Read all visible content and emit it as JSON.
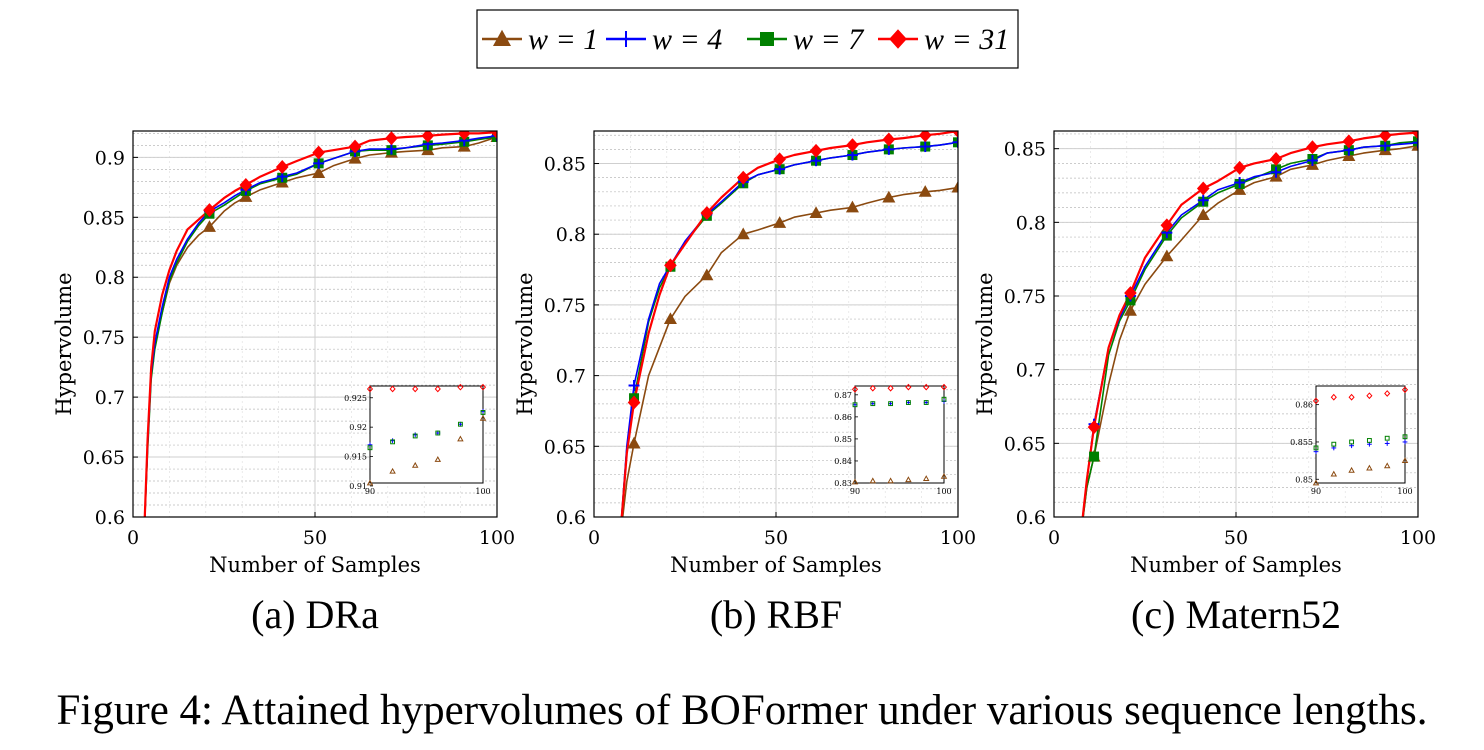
{
  "legend": [
    {
      "label": "w = 1",
      "color": "#8B4A10",
      "marker": "triangle"
    },
    {
      "label": "w = 4",
      "color": "#0000FF",
      "marker": "plus"
    },
    {
      "label": "w = 7",
      "color": "#008000",
      "marker": "square"
    },
    {
      "label": "w = 31",
      "color": "#FF0000",
      "marker": "diamond"
    }
  ],
  "figure_caption": "Figure 4: Attained hypervolumes of BOFormer under various sequence lengths.",
  "chart_data": [
    {
      "type": "line",
      "subcaption": "(a) DRa",
      "xlabel": "Number of Samples",
      "ylabel": "Hypervolume",
      "xlim": [
        0,
        100
      ],
      "ylim": [
        0.6,
        0.922
      ],
      "xticks": [
        0,
        50,
        100
      ],
      "yticks": [
        0.6,
        0.65,
        0.7,
        0.75,
        0.8,
        0.85,
        0.9
      ],
      "ytick_labels": [
        "0.6",
        "0.65",
        "0.7",
        "0.75",
        "0.8",
        "0.85",
        "0.9"
      ],
      "grid": true,
      "series": [
        {
          "name": "w = 1",
          "x": [
            3,
            4,
            5,
            6,
            8,
            10,
            12,
            15,
            18,
            21,
            25,
            28,
            31,
            35,
            41,
            45,
            51,
            55,
            61,
            65,
            71,
            75,
            81,
            85,
            91,
            95,
            100
          ],
          "y": [
            0.58,
            0.66,
            0.72,
            0.745,
            0.77,
            0.795,
            0.81,
            0.825,
            0.835,
            0.842,
            0.855,
            0.862,
            0.867,
            0.873,
            0.879,
            0.883,
            0.887,
            0.893,
            0.899,
            0.902,
            0.904,
            0.905,
            0.906,
            0.908,
            0.909,
            0.912,
            0.917
          ]
        },
        {
          "name": "w = 4",
          "x": [
            3,
            4,
            5,
            6,
            8,
            10,
            12,
            15,
            18,
            21,
            25,
            28,
            31,
            35,
            41,
            45,
            51,
            55,
            61,
            65,
            71,
            75,
            81,
            85,
            91,
            95,
            100
          ],
          "y": [
            0.58,
            0.66,
            0.72,
            0.745,
            0.775,
            0.8,
            0.815,
            0.832,
            0.845,
            0.855,
            0.862,
            0.868,
            0.873,
            0.879,
            0.884,
            0.887,
            0.895,
            0.899,
            0.905,
            0.907,
            0.907,
            0.908,
            0.911,
            0.912,
            0.914,
            0.916,
            0.918
          ]
        },
        {
          "name": "w = 7",
          "x": [
            3,
            4,
            5,
            6,
            8,
            10,
            12,
            15,
            18,
            21,
            25,
            28,
            31,
            35,
            41,
            45,
            51,
            55,
            61,
            65,
            71,
            75,
            81,
            85,
            91,
            95,
            100
          ],
          "y": [
            0.58,
            0.655,
            0.715,
            0.74,
            0.77,
            0.797,
            0.812,
            0.83,
            0.843,
            0.853,
            0.86,
            0.866,
            0.872,
            0.878,
            0.883,
            0.886,
            0.895,
            0.899,
            0.905,
            0.906,
            0.906,
            0.908,
            0.91,
            0.911,
            0.913,
            0.915,
            0.917
          ]
        },
        {
          "name": "w = 31",
          "x": [
            3,
            4,
            5,
            6,
            8,
            10,
            12,
            15,
            18,
            21,
            25,
            28,
            31,
            35,
            41,
            45,
            51,
            55,
            61,
            65,
            71,
            75,
            81,
            85,
            91,
            95,
            100
          ],
          "y": [
            0.58,
            0.665,
            0.725,
            0.755,
            0.785,
            0.806,
            0.822,
            0.84,
            0.848,
            0.856,
            0.866,
            0.872,
            0.877,
            0.884,
            0.892,
            0.897,
            0.904,
            0.906,
            0.909,
            0.914,
            0.916,
            0.917,
            0.918,
            0.919,
            0.92,
            0.92,
            0.921
          ]
        }
      ],
      "inset": {
        "xlim": [
          90,
          100
        ],
        "ylim": [
          0.9105,
          0.927
        ],
        "xticks": [
          90,
          100
        ],
        "yticks": [
          0.91,
          0.915,
          0.92,
          0.925
        ],
        "series": [
          {
            "name": "w = 1",
            "x": [
              90,
              92,
              94,
              96,
              98,
              100
            ],
            "y": [
              0.9105,
              0.9125,
              0.9135,
              0.9145,
              0.918,
              0.9215
            ]
          },
          {
            "name": "w = 4",
            "x": [
              90,
              92,
              94,
              96,
              98,
              100
            ],
            "y": [
              0.917,
              0.9177,
              0.9187,
              0.919,
              0.9205,
              0.9227
            ]
          },
          {
            "name": "w = 7",
            "x": [
              90,
              92,
              94,
              96,
              98,
              100
            ],
            "y": [
              0.9165,
              0.9175,
              0.9185,
              0.919,
              0.9205,
              0.9225
            ]
          },
          {
            "name": "w = 31",
            "x": [
              90,
              92,
              94,
              96,
              98,
              100
            ],
            "y": [
              0.9265,
              0.9265,
              0.9265,
              0.9265,
              0.9268,
              0.9268
            ]
          }
        ]
      }
    },
    {
      "type": "line",
      "subcaption": "(b) RBF",
      "xlabel": "Number of Samples",
      "ylabel": "Hypervolume",
      "xlim": [
        0,
        100
      ],
      "ylim": [
        0.6,
        0.873
      ],
      "xticks": [
        0,
        50,
        100
      ],
      "yticks": [
        0.6,
        0.65,
        0.7,
        0.75,
        0.8,
        0.85
      ],
      "ytick_labels": [
        "0.6",
        "0.65",
        "0.7",
        "0.75",
        "0.8",
        "0.85"
      ],
      "grid": true,
      "series": [
        {
          "name": "w = 1",
          "x": [
            7,
            9,
            11,
            15,
            21,
            25,
            31,
            35,
            41,
            45,
            51,
            55,
            61,
            65,
            71,
            75,
            81,
            85,
            91,
            95,
            100
          ],
          "y": [
            0.58,
            0.625,
            0.652,
            0.7,
            0.74,
            0.756,
            0.771,
            0.787,
            0.8,
            0.803,
            0.808,
            0.812,
            0.815,
            0.817,
            0.819,
            0.822,
            0.826,
            0.828,
            0.83,
            0.831,
            0.833
          ]
        },
        {
          "name": "w = 4",
          "x": [
            7,
            9,
            11,
            15,
            18,
            21,
            25,
            31,
            35,
            41,
            45,
            51,
            55,
            61,
            65,
            71,
            75,
            81,
            85,
            91,
            95,
            100
          ],
          "y": [
            0.58,
            0.65,
            0.693,
            0.74,
            0.765,
            0.778,
            0.795,
            0.814,
            0.823,
            0.837,
            0.842,
            0.846,
            0.849,
            0.852,
            0.854,
            0.856,
            0.858,
            0.86,
            0.861,
            0.862,
            0.863,
            0.865
          ]
        },
        {
          "name": "w = 7",
          "x": [
            7,
            9,
            11,
            15,
            18,
            21,
            25,
            31,
            35,
            41,
            45,
            51,
            55,
            61,
            65,
            71,
            75,
            81,
            85,
            91,
            95,
            100
          ],
          "y": [
            0.58,
            0.648,
            0.684,
            0.738,
            0.762,
            0.777,
            0.794,
            0.813,
            0.822,
            0.836,
            0.842,
            0.846,
            0.849,
            0.852,
            0.854,
            0.856,
            0.858,
            0.86,
            0.861,
            0.862,
            0.863,
            0.865
          ]
        },
        {
          "name": "w = 31",
          "x": [
            7,
            9,
            11,
            15,
            18,
            21,
            25,
            31,
            35,
            41,
            45,
            51,
            55,
            61,
            65,
            71,
            75,
            81,
            85,
            91,
            95,
            100
          ],
          "y": [
            0.58,
            0.645,
            0.681,
            0.73,
            0.757,
            0.778,
            0.793,
            0.815,
            0.826,
            0.84,
            0.847,
            0.853,
            0.856,
            0.859,
            0.861,
            0.863,
            0.865,
            0.867,
            0.868,
            0.87,
            0.871,
            0.873
          ]
        }
      ],
      "inset": {
        "xlim": [
          90,
          100
        ],
        "ylim": [
          0.83,
          0.874
        ],
        "xticks": [
          90,
          100
        ],
        "yticks": [
          0.83,
          0.84,
          0.85,
          0.86,
          0.87
        ],
        "series": [
          {
            "name": "w = 1",
            "x": [
              90,
              92,
              94,
              96,
              98,
              100
            ],
            "y": [
              0.8305,
              0.831,
              0.831,
              0.8315,
              0.832,
              0.833
            ]
          },
          {
            "name": "w = 4",
            "x": [
              90,
              92,
              94,
              96,
              98,
              100
            ],
            "y": [
              0.8655,
              0.866,
              0.866,
              0.8665,
              0.8665,
              0.867
            ]
          },
          {
            "name": "w = 7",
            "x": [
              90,
              92,
              94,
              96,
              98,
              100
            ],
            "y": [
              0.8655,
              0.866,
              0.866,
              0.8665,
              0.8665,
              0.868
            ]
          },
          {
            "name": "w = 31",
            "x": [
              90,
              92,
              94,
              96,
              98,
              100
            ],
            "y": [
              0.8725,
              0.873,
              0.873,
              0.8735,
              0.8735,
              0.8735
            ]
          }
        ]
      }
    },
    {
      "type": "line",
      "subcaption": "(c) Matern52",
      "xlabel": "Number of Samples",
      "ylabel": "Hypervolume",
      "xlim": [
        0,
        100
      ],
      "ylim": [
        0.6,
        0.862
      ],
      "xticks": [
        0,
        50,
        100
      ],
      "yticks": [
        0.6,
        0.65,
        0.7,
        0.75,
        0.8,
        0.85
      ],
      "ytick_labels": [
        "0.6",
        "0.65",
        "0.7",
        "0.75",
        "0.8",
        "0.85"
      ],
      "grid": true,
      "series": [
        {
          "name": "w = 1",
          "x": [
            7,
            9,
            11,
            15,
            18,
            21,
            25,
            31,
            35,
            41,
            45,
            51,
            55,
            61,
            65,
            71,
            75,
            81,
            85,
            91,
            95,
            100
          ],
          "y": [
            0.58,
            0.62,
            0.641,
            0.69,
            0.72,
            0.74,
            0.758,
            0.777,
            0.788,
            0.805,
            0.813,
            0.822,
            0.827,
            0.831,
            0.836,
            0.839,
            0.842,
            0.845,
            0.847,
            0.849,
            0.85,
            0.852
          ]
        },
        {
          "name": "w = 4",
          "x": [
            7,
            9,
            11,
            15,
            18,
            21,
            25,
            31,
            35,
            41,
            45,
            51,
            55,
            61,
            65,
            71,
            75,
            81,
            85,
            91,
            95,
            100
          ],
          "y": [
            0.58,
            0.625,
            0.663,
            0.715,
            0.735,
            0.75,
            0.77,
            0.793,
            0.805,
            0.815,
            0.822,
            0.827,
            0.831,
            0.834,
            0.838,
            0.842,
            0.847,
            0.849,
            0.851,
            0.852,
            0.853,
            0.854
          ]
        },
        {
          "name": "w = 7",
          "x": [
            7,
            9,
            11,
            15,
            18,
            21,
            25,
            31,
            35,
            41,
            45,
            51,
            55,
            61,
            65,
            71,
            75,
            81,
            85,
            91,
            95,
            100
          ],
          "y": [
            0.58,
            0.62,
            0.641,
            0.71,
            0.733,
            0.747,
            0.768,
            0.791,
            0.803,
            0.814,
            0.82,
            0.826,
            0.83,
            0.836,
            0.84,
            0.843,
            0.847,
            0.849,
            0.851,
            0.852,
            0.854,
            0.855
          ]
        },
        {
          "name": "w = 31",
          "x": [
            7,
            9,
            11,
            15,
            18,
            21,
            25,
            31,
            35,
            41,
            45,
            51,
            55,
            61,
            65,
            71,
            75,
            81,
            85,
            91,
            95,
            100
          ],
          "y": [
            0.58,
            0.625,
            0.661,
            0.715,
            0.737,
            0.752,
            0.776,
            0.798,
            0.812,
            0.823,
            0.828,
            0.837,
            0.84,
            0.843,
            0.847,
            0.851,
            0.853,
            0.855,
            0.857,
            0.859,
            0.86,
            0.861
          ]
        }
      ],
      "inset": {
        "xlim": [
          90,
          100
        ],
        "ylim": [
          0.8495,
          0.8625
        ],
        "xticks": [
          90,
          100
        ],
        "yticks": [
          0.85,
          0.855,
          0.86
        ],
        "series": [
          {
            "name": "w = 1",
            "x": [
              90,
              92,
              94,
              96,
              98,
              100
            ],
            "y": [
              0.8495,
              0.8507,
              0.8512,
              0.8515,
              0.8518,
              0.8525
            ]
          },
          {
            "name": "w = 4",
            "x": [
              90,
              92,
              94,
              96,
              98,
              100
            ],
            "y": [
              0.8537,
              0.8542,
              0.8545,
              0.8547,
              0.8548,
              0.855
            ]
          },
          {
            "name": "w = 7",
            "x": [
              90,
              92,
              94,
              96,
              98,
              100
            ],
            "y": [
              0.8542,
              0.8547,
              0.855,
              0.8552,
              0.8555,
              0.8557
            ]
          },
          {
            "name": "w = 31",
            "x": [
              90,
              92,
              94,
              96,
              98,
              100
            ],
            "y": [
              0.8605,
              0.861,
              0.861,
              0.8612,
              0.8615,
              0.862
            ]
          }
        ]
      }
    }
  ]
}
